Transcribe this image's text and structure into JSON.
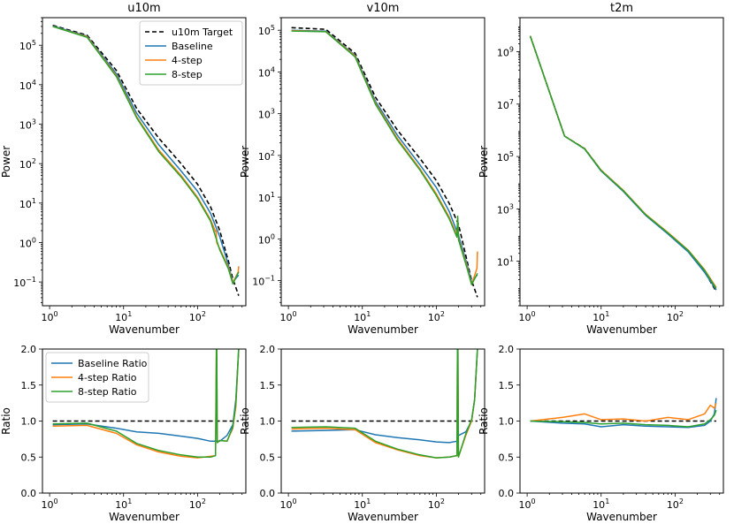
{
  "chart_data": [
    {
      "type": "line",
      "title": "u10m",
      "xlabel": "Wavenumber",
      "ylabel": "Power",
      "xscale": "log",
      "yscale": "log",
      "xlim": [
        0.8,
        450
      ],
      "ylim": [
        0.025,
        500000
      ],
      "xticks": [
        {
          "v": 1,
          "b": "10",
          "e": "0"
        },
        {
          "v": 10,
          "b": "10",
          "e": "1"
        },
        {
          "v": 100,
          "b": "10",
          "e": "2"
        }
      ],
      "yticks": [
        {
          "v": 0.1,
          "b": "10",
          "e": "−1"
        },
        {
          "v": 1,
          "b": "10",
          "e": "0"
        },
        {
          "v": 10,
          "b": "10",
          "e": "1"
        },
        {
          "v": 100,
          "b": "10",
          "e": "2"
        },
        {
          "v": 1000,
          "b": "10",
          "e": "3"
        },
        {
          "v": 10000,
          "b": "10",
          "e": "4"
        },
        {
          "v": 100000,
          "b": "10",
          "e": "5"
        }
      ],
      "legend": "top-right",
      "series": [
        {
          "name": "u10m Target",
          "color": "#000000",
          "dashed": true,
          "x": [
            1.1,
            3.2,
            8,
            15,
            30,
            60,
            100,
            150,
            200,
            260,
            300,
            360
          ],
          "y": [
            320000,
            180000,
            23000,
            2500,
            440,
            100,
            30,
            8,
            2,
            0.35,
            0.12,
            0.045
          ]
        },
        {
          "name": "Baseline",
          "color": "#1f77b4",
          "dashed": false,
          "x": [
            1.1,
            3.2,
            8,
            15,
            30,
            60,
            100,
            150,
            200,
            260,
            300,
            360
          ],
          "y": [
            310000,
            170000,
            19000,
            1900,
            300,
            65,
            20,
            5.5,
            1.4,
            0.28,
            0.1,
            0.15
          ]
        },
        {
          "name": "4-step",
          "color": "#ff7f0e",
          "dashed": false,
          "x": [
            1.1,
            3.2,
            8,
            15,
            30,
            60,
            100,
            150,
            175,
            178,
            182,
            200,
            260,
            300,
            355,
            360
          ],
          "y": [
            300000,
            165000,
            17000,
            1550,
            220,
            50,
            14,
            3.8,
            1.9,
            2,
            1,
            0.7,
            0.24,
            0.095,
            0.18,
            0.25
          ]
        },
        {
          "name": "8-step",
          "color": "#2ca02c",
          "dashed": false,
          "x": [
            1.1,
            3.2,
            8,
            15,
            30,
            60,
            100,
            150,
            200,
            260,
            300,
            360
          ],
          "y": [
            300000,
            160000,
            16000,
            1450,
            200,
            46,
            13,
            3.5,
            0.65,
            0.22,
            0.09,
            0.18
          ]
        }
      ]
    },
    {
      "type": "line",
      "title": "v10m",
      "xlabel": "Wavenumber",
      "ylabel": "Power",
      "xscale": "log",
      "yscale": "log",
      "xlim": [
        0.8,
        450
      ],
      "ylim": [
        0.025,
        200000
      ],
      "xticks": [
        {
          "v": 1,
          "b": "10",
          "e": "0"
        },
        {
          "v": 10,
          "b": "10",
          "e": "1"
        },
        {
          "v": 100,
          "b": "10",
          "e": "2"
        }
      ],
      "yticks": [
        {
          "v": 0.1,
          "b": "10",
          "e": "−1"
        },
        {
          "v": 1,
          "b": "10",
          "e": "0"
        },
        {
          "v": 10,
          "b": "10",
          "e": "1"
        },
        {
          "v": 100,
          "b": "10",
          "e": "2"
        },
        {
          "v": 1000,
          "b": "10",
          "e": "3"
        },
        {
          "v": 10000,
          "b": "10",
          "e": "4"
        },
        {
          "v": 100000,
          "b": "10",
          "e": "5"
        }
      ],
      "legend": "none",
      "series": [
        {
          "name": "v10m Target",
          "color": "#000000",
          "dashed": true,
          "x": [
            1.1,
            3.2,
            8,
            15,
            30,
            60,
            100,
            150,
            200,
            260,
            300,
            360
          ],
          "y": [
            115000,
            105000,
            28000,
            2500,
            400,
            85,
            25,
            7,
            2.2,
            0.3,
            0.1,
            0.04
          ]
        },
        {
          "name": "Baseline",
          "color": "#1f77b4",
          "dashed": false,
          "x": [
            1.1,
            3.2,
            8,
            15,
            30,
            60,
            100,
            150,
            190,
            195,
            200,
            260,
            300,
            360
          ],
          "y": [
            100000,
            95000,
            25000,
            2000,
            300,
            60,
            17,
            4.5,
            1.5,
            2.5,
            1.2,
            0.25,
            0.09,
            0.14
          ]
        },
        {
          "name": "4-step",
          "color": "#ff7f0e",
          "dashed": false,
          "x": [
            1.1,
            3.2,
            8,
            15,
            30,
            60,
            100,
            150,
            190,
            195,
            200,
            260,
            300,
            355,
            360
          ],
          "y": [
            98000,
            93000,
            24000,
            1800,
            250,
            48,
            12,
            3.3,
            1.2,
            3.2,
            1,
            0.22,
            0.08,
            0.2,
            0.5
          ]
        },
        {
          "name": "8-step",
          "color": "#2ca02c",
          "dashed": false,
          "x": [
            1.1,
            3.2,
            8,
            15,
            30,
            60,
            100,
            150,
            190,
            195,
            200,
            260,
            300,
            360
          ],
          "y": [
            96000,
            92000,
            23000,
            1700,
            230,
            45,
            11,
            3,
            1.1,
            3.5,
            0.95,
            0.2,
            0.08,
            0.15
          ]
        }
      ]
    },
    {
      "type": "line",
      "title": "t2m",
      "xlabel": "Wavenumber",
      "ylabel": "Power",
      "xscale": "log",
      "yscale": "log",
      "xlim": [
        0.8,
        450
      ],
      "ylim": [
        0.2,
        20000000000
      ],
      "xticks": [
        {
          "v": 1,
          "b": "10",
          "e": "0"
        },
        {
          "v": 10,
          "b": "10",
          "e": "1"
        },
        {
          "v": 100,
          "b": "10",
          "e": "2"
        }
      ],
      "yticks": [
        {
          "v": 10,
          "b": "10",
          "e": "1"
        },
        {
          "v": 1000,
          "b": "10",
          "e": "3"
        },
        {
          "v": 100000,
          "b": "10",
          "e": "5"
        },
        {
          "v": 10000000,
          "b": "10",
          "e": "7"
        },
        {
          "v": 1000000000,
          "b": "10",
          "e": "9"
        }
      ],
      "legend": "none",
      "series": [
        {
          "name": "t2m Target",
          "color": "#000000",
          "dashed": true,
          "x": [
            1.1,
            3.2,
            6,
            10,
            20,
            40,
            80,
            150,
            250,
            360
          ],
          "y": [
            4000000000,
            600000,
            200000,
            30000,
            5000,
            600,
            120,
            25,
            4,
            0.7
          ]
        },
        {
          "name": "Baseline",
          "color": "#1f77b4",
          "dashed": false,
          "x": [
            1.1,
            3.2,
            6,
            10,
            20,
            40,
            80,
            150,
            250,
            360
          ],
          "y": [
            4000000000,
            600000,
            190000,
            28000,
            4600,
            560,
            110,
            23,
            3.8,
            0.8
          ]
        },
        {
          "name": "4-step",
          "color": "#ff7f0e",
          "dashed": false,
          "x": [
            1.1,
            3.2,
            6,
            10,
            20,
            40,
            80,
            150,
            250,
            360
          ],
          "y": [
            4000000000,
            600000,
            200000,
            30000,
            5100,
            620,
            125,
            27,
            4.8,
            1
          ]
        },
        {
          "name": "8-step",
          "color": "#2ca02c",
          "dashed": false,
          "x": [
            1.1,
            3.2,
            6,
            10,
            20,
            40,
            80,
            150,
            250,
            360
          ],
          "y": [
            4000000000,
            600000,
            195000,
            29000,
            4900,
            600,
            120,
            26,
            4.5,
            0.9
          ]
        }
      ]
    },
    {
      "type": "line",
      "title": "",
      "xlabel": "Wavenumber",
      "ylabel": "Ratio",
      "xscale": "log",
      "yscale": "linear",
      "xlim": [
        0.8,
        450
      ],
      "ylim": [
        0,
        2
      ],
      "xticks": [
        {
          "v": 1,
          "b": "10",
          "e": "0"
        },
        {
          "v": 10,
          "b": "10",
          "e": "1"
        },
        {
          "v": 100,
          "b": "10",
          "e": "2"
        }
      ],
      "yticks": [
        {
          "v": 0,
          "t": "0.0"
        },
        {
          "v": 0.5,
          "t": "0.5"
        },
        {
          "v": 1,
          "t": "1.0"
        },
        {
          "v": 1.5,
          "t": "1.5"
        },
        {
          "v": 2,
          "t": "2.0"
        }
      ],
      "legend": "top-left",
      "series": [
        {
          "name": "Target",
          "color": "#000000",
          "dashed": true,
          "x": [
            1.1,
            360
          ],
          "y": [
            1,
            1
          ],
          "in_legend": false
        },
        {
          "name": "Baseline Ratio",
          "color": "#1f77b4",
          "dashed": false,
          "x": [
            1.1,
            3.2,
            8,
            15,
            30,
            60,
            100,
            150,
            170,
            200,
            250,
            300,
            330,
            360
          ],
          "y": [
            0.95,
            0.96,
            0.9,
            0.85,
            0.83,
            0.79,
            0.76,
            0.72,
            0.72,
            0.72,
            0.8,
            0.95,
            1.3,
            2
          ]
        },
        {
          "name": "4-step Ratio",
          "color": "#ff7f0e",
          "dashed": false,
          "x": [
            1.1,
            3.2,
            8,
            15,
            30,
            60,
            100,
            150,
            175,
            178,
            180,
            182,
            185,
            200,
            250,
            300,
            330,
            360
          ],
          "y": [
            0.93,
            0.94,
            0.83,
            0.67,
            0.57,
            0.51,
            0.49,
            0.51,
            0.52,
            1.45,
            2,
            2,
            0.7,
            0.73,
            0.72,
            0.9,
            1.2,
            2
          ]
        },
        {
          "name": "8-step Ratio",
          "color": "#2ca02c",
          "dashed": false,
          "x": [
            1.1,
            3.2,
            8,
            15,
            30,
            60,
            100,
            150,
            175,
            178,
            180,
            182,
            185,
            200,
            250,
            300,
            330,
            360
          ],
          "y": [
            0.96,
            0.97,
            0.86,
            0.69,
            0.59,
            0.53,
            0.5,
            0.5,
            0.52,
            1.2,
            2,
            2,
            0.7,
            0.73,
            0.72,
            0.92,
            1.25,
            2
          ]
        }
      ]
    },
    {
      "type": "line",
      "title": "",
      "xlabel": "Wavenumber",
      "ylabel": "Ratio",
      "xscale": "log",
      "yscale": "linear",
      "xlim": [
        0.8,
        450
      ],
      "ylim": [
        0,
        2
      ],
      "xticks": [
        {
          "v": 1,
          "b": "10",
          "e": "0"
        },
        {
          "v": 10,
          "b": "10",
          "e": "1"
        },
        {
          "v": 100,
          "b": "10",
          "e": "2"
        }
      ],
      "yticks": [
        {
          "v": 0,
          "t": "0.0"
        },
        {
          "v": 0.5,
          "t": "0.5"
        },
        {
          "v": 1,
          "t": "1.0"
        },
        {
          "v": 1.5,
          "t": "1.5"
        },
        {
          "v": 2,
          "t": "2.0"
        }
      ],
      "legend": "none",
      "series": [
        {
          "name": "Target",
          "color": "#000000",
          "dashed": true,
          "x": [
            1.1,
            360
          ],
          "y": [
            1,
            1
          ],
          "in_legend": false
        },
        {
          "name": "Baseline Ratio",
          "color": "#1f77b4",
          "dashed": false,
          "x": [
            1.1,
            3.2,
            8,
            15,
            30,
            60,
            100,
            150,
            190,
            200,
            250,
            300,
            330,
            360
          ],
          "y": [
            0.86,
            0.87,
            0.88,
            0.81,
            0.77,
            0.74,
            0.71,
            0.7,
            0.72,
            0.8,
            0.85,
            1,
            1.3,
            2
          ]
        },
        {
          "name": "4-step Ratio",
          "color": "#ff7f0e",
          "dashed": false,
          "x": [
            1.1,
            3.2,
            8,
            15,
            30,
            60,
            100,
            150,
            190,
            193,
            196,
            199,
            202,
            250,
            300,
            330,
            360
          ],
          "y": [
            0.89,
            0.9,
            0.88,
            0.7,
            0.6,
            0.52,
            0.49,
            0.5,
            0.52,
            2,
            2,
            0.5,
            0.52,
            0.8,
            1,
            1.3,
            2
          ]
        },
        {
          "name": "8-step Ratio",
          "color": "#2ca02c",
          "dashed": false,
          "x": [
            1.1,
            3.2,
            8,
            15,
            30,
            60,
            100,
            150,
            190,
            193,
            196,
            199,
            202,
            250,
            300,
            330,
            360
          ],
          "y": [
            0.91,
            0.92,
            0.9,
            0.72,
            0.61,
            0.53,
            0.49,
            0.5,
            0.52,
            2,
            2,
            0.5,
            0.52,
            0.82,
            1.02,
            1.3,
            2
          ]
        }
      ]
    },
    {
      "type": "line",
      "title": "",
      "xlabel": "Wavenumber",
      "ylabel": "Ratio",
      "xscale": "log",
      "yscale": "linear",
      "xlim": [
        0.8,
        450
      ],
      "ylim": [
        0,
        2
      ],
      "xticks": [
        {
          "v": 1,
          "b": "10",
          "e": "0"
        },
        {
          "v": 10,
          "b": "10",
          "e": "1"
        },
        {
          "v": 100,
          "b": "10",
          "e": "2"
        }
      ],
      "yticks": [
        {
          "v": 0,
          "t": "0.0"
        },
        {
          "v": 0.5,
          "t": "0.5"
        },
        {
          "v": 1,
          "t": "1.0"
        },
        {
          "v": 1.5,
          "t": "1.5"
        },
        {
          "v": 2,
          "t": "2.0"
        }
      ],
      "legend": "none",
      "series": [
        {
          "name": "Target",
          "color": "#000000",
          "dashed": true,
          "x": [
            1.1,
            360
          ],
          "y": [
            1,
            1
          ],
          "in_legend": false
        },
        {
          "name": "Baseline Ratio",
          "color": "#1f77b4",
          "dashed": false,
          "x": [
            1.1,
            3,
            6,
            10,
            20,
            40,
            80,
            150,
            250,
            300,
            340,
            360
          ],
          "y": [
            1,
            0.97,
            0.96,
            0.92,
            0.95,
            0.93,
            0.92,
            0.91,
            0.94,
            1,
            1.1,
            1.32
          ]
        },
        {
          "name": "4-step Ratio",
          "color": "#ff7f0e",
          "dashed": false,
          "x": [
            1.1,
            3,
            6,
            10,
            20,
            40,
            80,
            150,
            250,
            300,
            340,
            360
          ],
          "y": [
            1,
            1.05,
            1.1,
            1.02,
            1.03,
            1,
            1.05,
            1.02,
            1.1,
            1.22,
            1.18,
            1.25
          ]
        },
        {
          "name": "8-step Ratio",
          "color": "#2ca02c",
          "dashed": false,
          "x": [
            1.1,
            3,
            6,
            10,
            20,
            40,
            80,
            150,
            250,
            300,
            340,
            360
          ],
          "y": [
            1,
            0.99,
            0.98,
            0.96,
            0.97,
            0.95,
            0.94,
            0.92,
            0.96,
            1.02,
            1.08,
            1.15
          ]
        }
      ]
    }
  ]
}
